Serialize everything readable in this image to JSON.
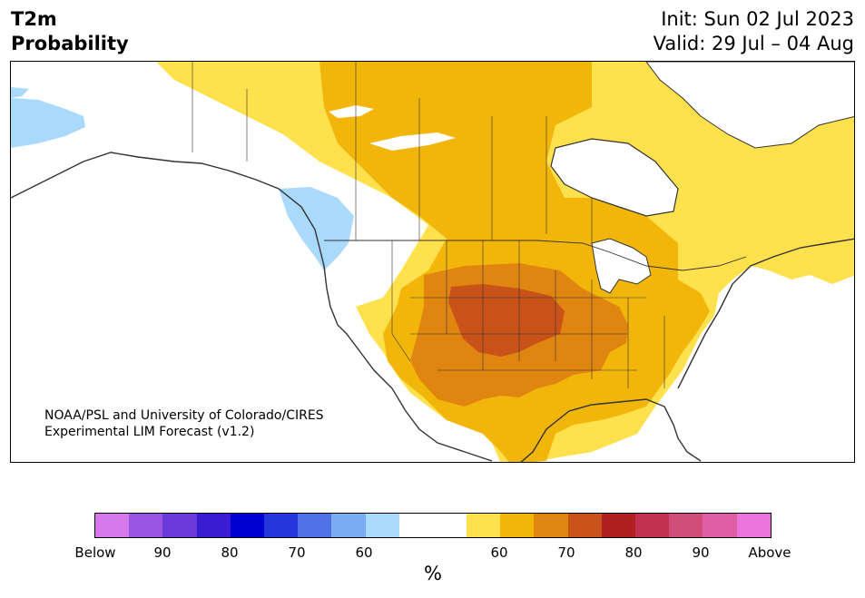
{
  "header": {
    "variable": "T2m",
    "product": "Probability",
    "init": "Init: Sun 02 Jul 2023",
    "valid": "Valid: 29 Jul – 04 Aug"
  },
  "credit": {
    "line1": "NOAA/PSL and University of Colorado/CIRES",
    "line2": "Experimental LIM Forecast (v1.2)"
  },
  "colorbar": {
    "unit": "%",
    "tick_labels": [
      "Below",
      "90",
      "80",
      "70",
      "60",
      "60",
      "70",
      "80",
      "90",
      "Above"
    ],
    "colors": [
      "#d579ec",
      "#9b55e3",
      "#6b38da",
      "#3a1dd3",
      "#0000d2",
      "#2536db",
      "#4e71e6",
      "#79acf2",
      "#a9d9fb",
      "#ffffff",
      "#ffffff",
      "#ffe04d",
      "#f2b60a",
      "#e0850f",
      "#c85218",
      "#b02021",
      "#c23150",
      "#d04d7a",
      "#dd60a7",
      "#eb74dc"
    ]
  },
  "legend_colors": {
    "below_60": "#a9d9fb",
    "above_60": "#ffe04d",
    "above_65": "#f2b60a",
    "above_70": "#e0850f",
    "above_75": "#c85218"
  }
}
